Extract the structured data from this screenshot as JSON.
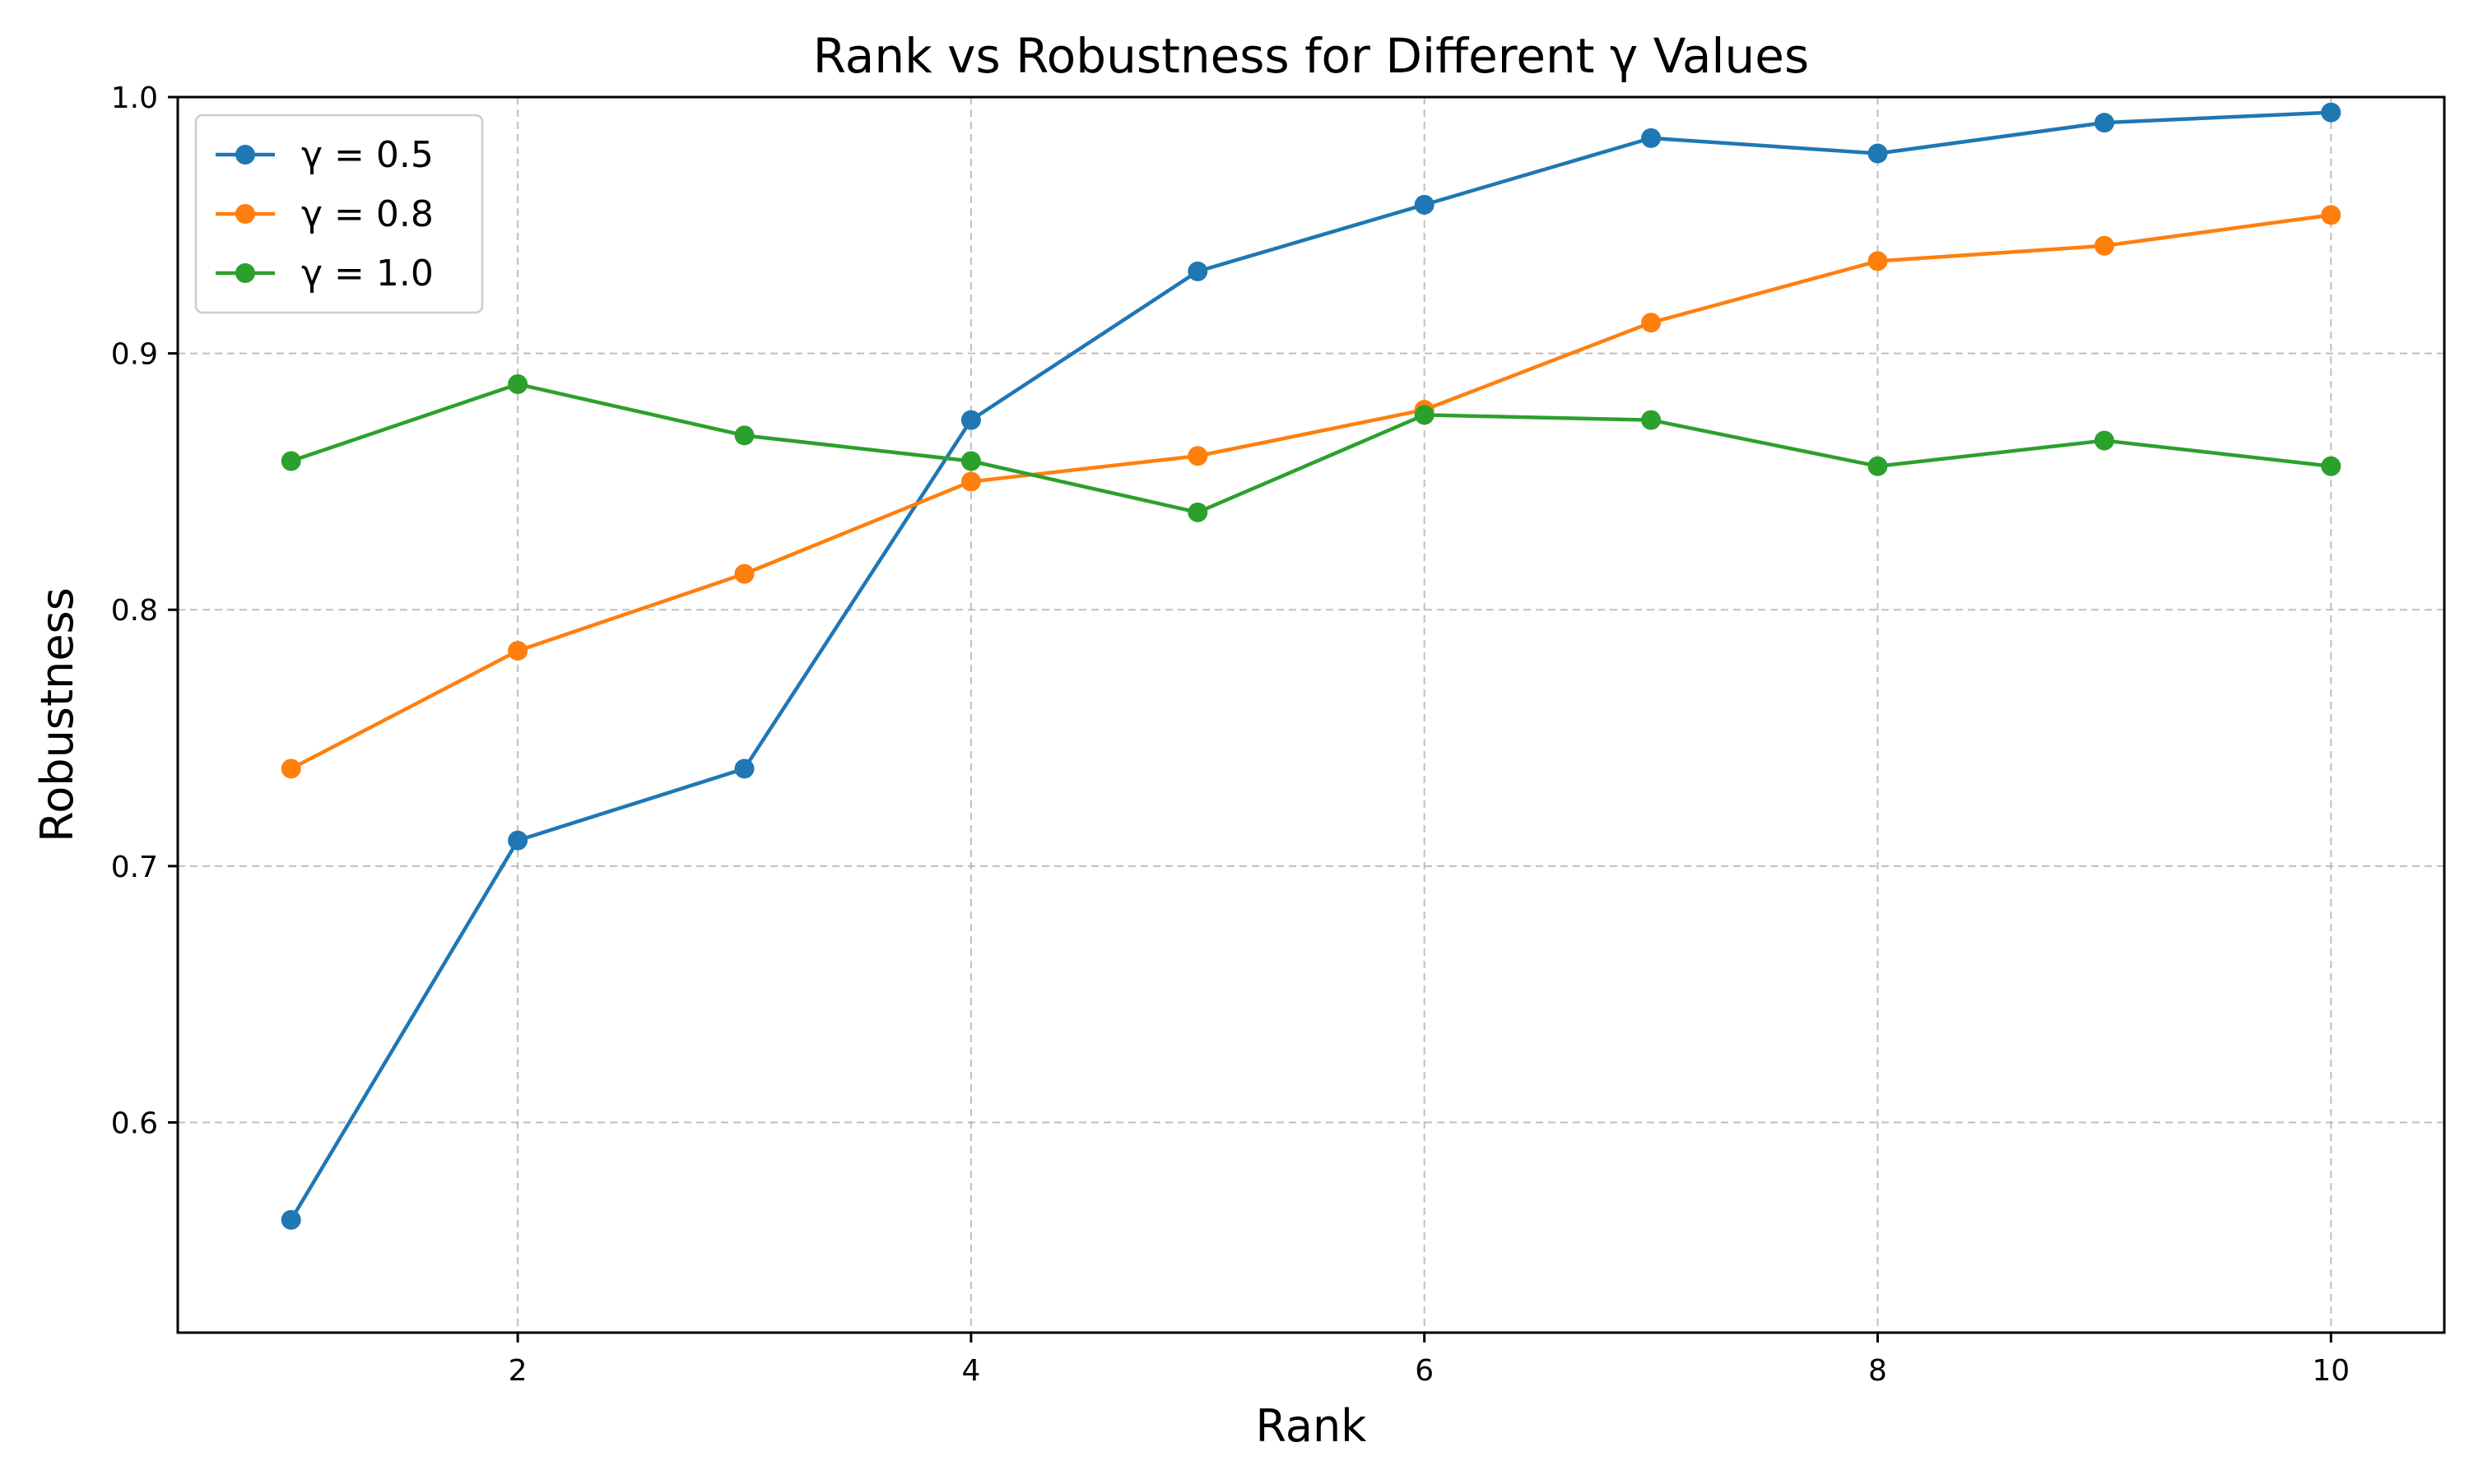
{
  "chart_data": {
    "type": "line",
    "title": "Rank vs Robustness for Different γ Values",
    "xlabel": "Rank",
    "ylabel": "Robustness",
    "xlim": [
      0.5,
      10.5
    ],
    "ylim": [
      0.518,
      1.0
    ],
    "xticks": [
      2,
      4,
      6,
      8,
      10
    ],
    "yticks": [
      0.6,
      0.7,
      0.8,
      0.9,
      1.0
    ],
    "xtick_labels": [
      "2",
      "4",
      "6",
      "8",
      "10"
    ],
    "ytick_labels": [
      "0.6",
      "0.7",
      "0.8",
      "0.9",
      "1.0"
    ],
    "grid": true,
    "legend_position": "top-left",
    "x": [
      1,
      2,
      3,
      4,
      5,
      6,
      7,
      8,
      9,
      10
    ],
    "series": [
      {
        "name": "γ = 0.5",
        "color": "#1f77b4",
        "values": [
          0.562,
          0.71,
          0.738,
          0.874,
          0.932,
          0.958,
          0.984,
          0.978,
          0.99,
          0.994
        ]
      },
      {
        "name": "γ = 0.8",
        "color": "#ff7f0e",
        "values": [
          0.738,
          0.784,
          0.814,
          0.85,
          0.86,
          0.878,
          0.912,
          0.936,
          0.942,
          0.954
        ]
      },
      {
        "name": "γ = 1.0",
        "color": "#2ca02c",
        "values": [
          0.858,
          0.888,
          0.868,
          0.858,
          0.838,
          0.876,
          0.874,
          0.856,
          0.866,
          0.856
        ]
      }
    ]
  }
}
